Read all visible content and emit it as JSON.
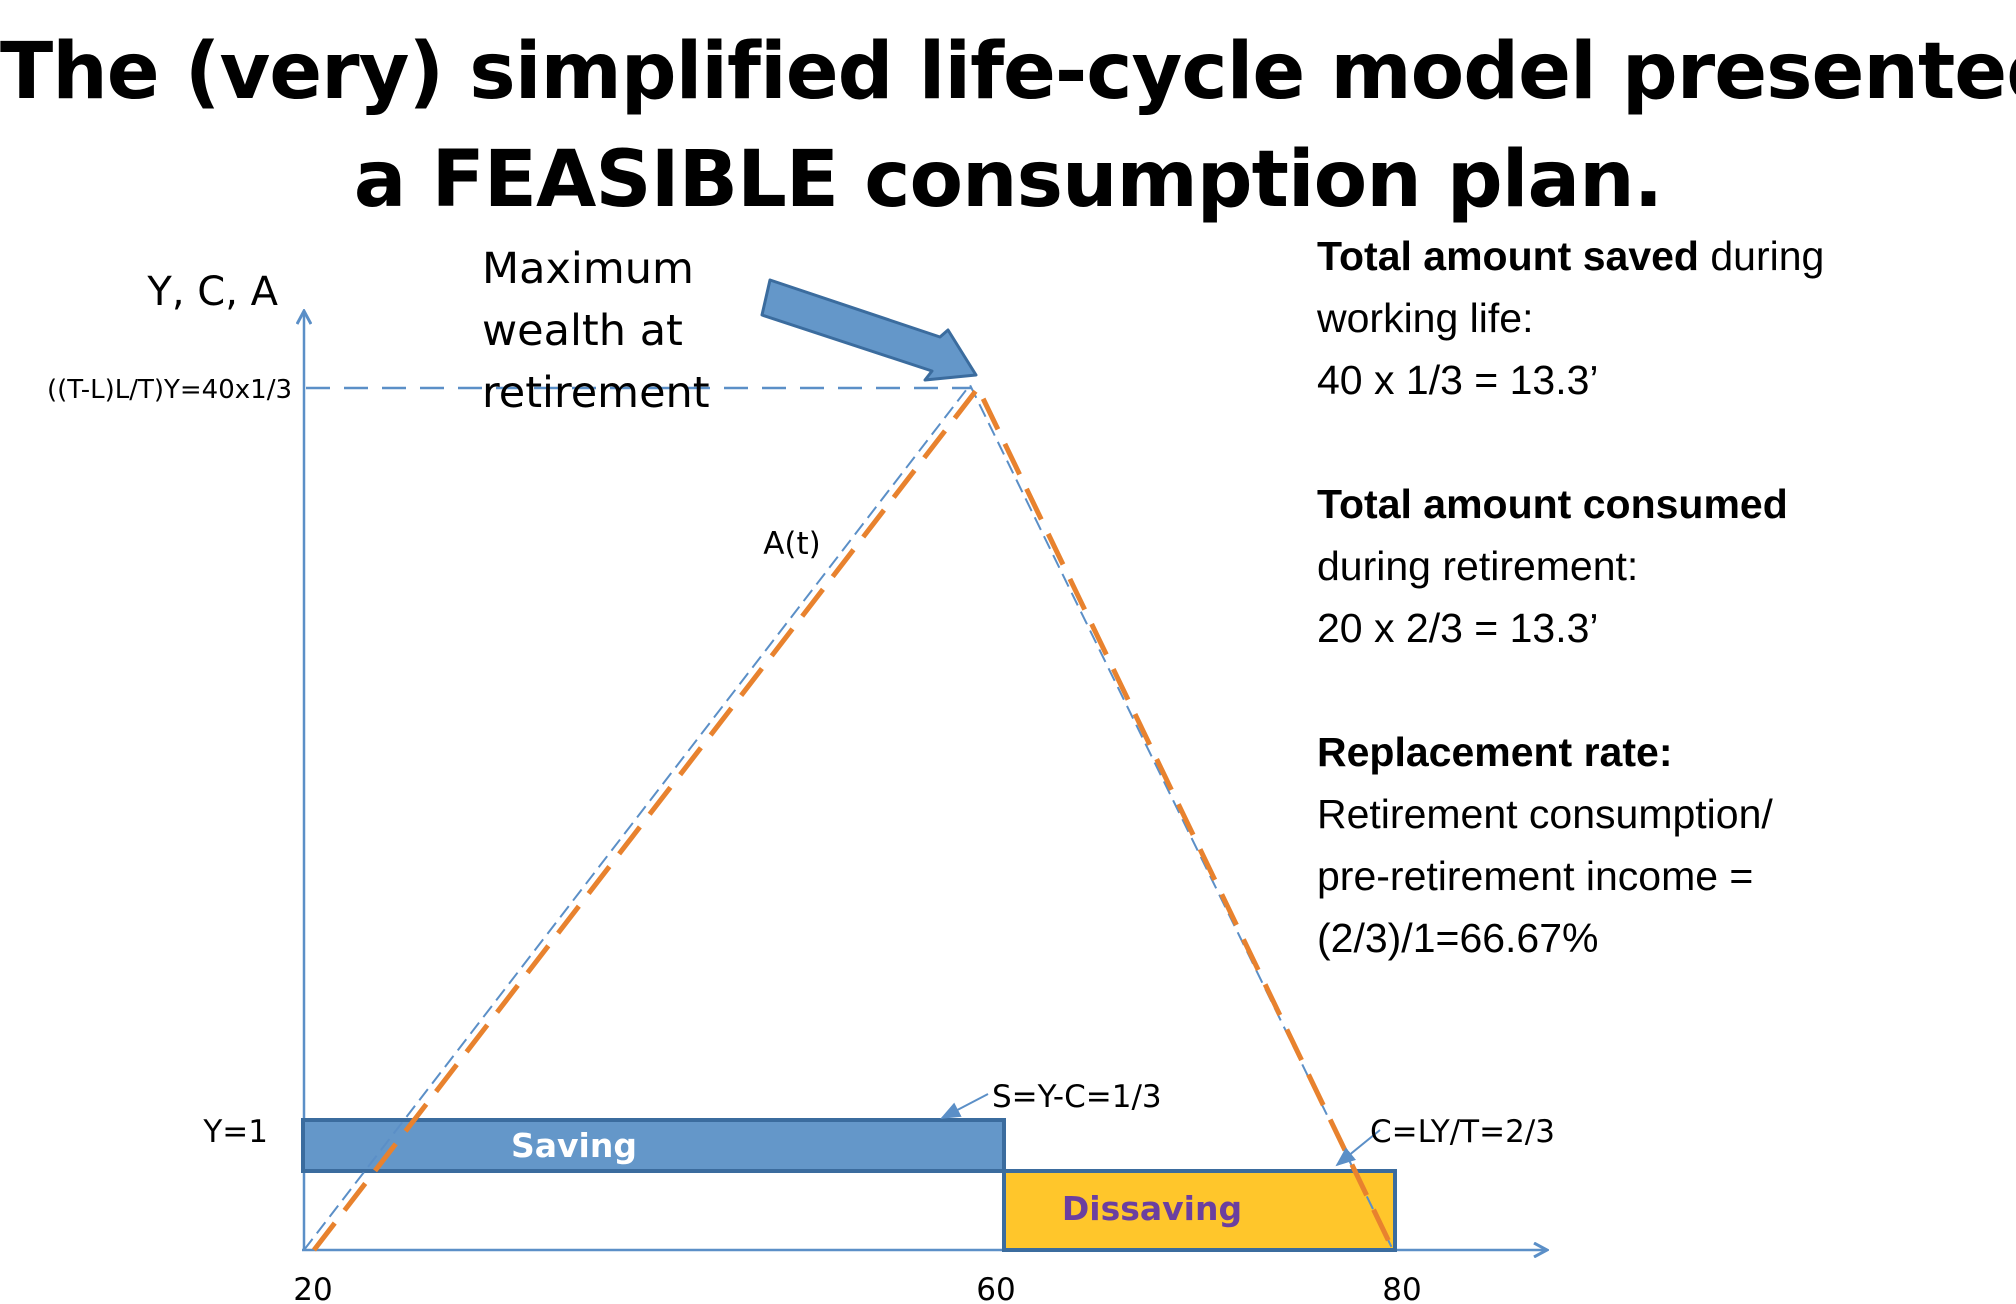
{
  "title": {
    "line1": "The (very) simplified life-cycle model presented",
    "line2": "a FEASIBLE consumption plan."
  },
  "axis": {
    "y_label": "Y, C, A",
    "y_top_label": "((T-L)L/T)Y=40x1/3",
    "y_income_label": "Y=1",
    "x_ticks": [
      "20",
      "60",
      "80"
    ]
  },
  "annotations": {
    "max_wealth": [
      "Maximum",
      "wealth at",
      "retirement"
    ],
    "wealth_curve": "A(t)",
    "saving_bar": "Saving",
    "dissaving_bar": "Dissaving",
    "saving_rate": "S=Y-C=1/3",
    "consumption_rate": "C=LY/T=2/3"
  },
  "info": {
    "saved": {
      "bold": "Total amount saved",
      "rest": " during",
      "line2": "working life:",
      "line3": "40 x 1/3 = 13.3’"
    },
    "consumed": {
      "bold": "Total amount consumed",
      "line2": "during retirement:",
      "line3": "20 x 2/3 = 13.3’"
    },
    "replacement": {
      "bold": "Replacement rate:",
      "line2": "Retirement consumption/",
      "line3": "pre-retirement income =",
      "line4": "(2/3)/1=66.67%"
    }
  },
  "colors": {
    "axis": "#5b8fc7",
    "saving_bar": "#6497c9",
    "saving_bar_border": "#3b6c9e",
    "dissaving_bar": "#ffc62b",
    "dissaving_bar_border": "#3b6c9e",
    "wealth_orange": "#e8822e",
    "wealth_blue": "#5b8fc7",
    "dissaving_text": "#6b3fa0",
    "saving_text": "#ffffff"
  }
}
